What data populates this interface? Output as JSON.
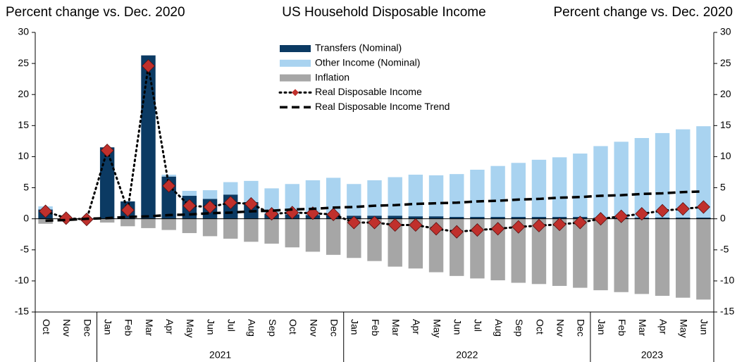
{
  "chart_data": {
    "type": "bar",
    "title": "US Household Disposable Income",
    "y_label": "Percent change vs. Dec. 2020",
    "y2_label": "Percent change vs. Dec. 2020",
    "categories": [
      "Oct",
      "Nov",
      "Dec",
      "Jan",
      "Feb",
      "Mar",
      "Apr",
      "May",
      "Jun",
      "Jul",
      "Aug",
      "Sep",
      "Oct",
      "Nov",
      "Dec",
      "Jan",
      "Feb",
      "Mar",
      "Apr",
      "May",
      "Jun",
      "Jul",
      "Aug",
      "Sep",
      "Oct",
      "Nov",
      "Dec",
      "Jan",
      "Feb",
      "Mar",
      "Apr",
      "May",
      "Jun"
    ],
    "year_groups": [
      {
        "label": null,
        "count": 3
      },
      {
        "label": "2021",
        "count": 12
      },
      {
        "label": "2022",
        "count": 12
      },
      {
        "label": "2023",
        "count": 6
      }
    ],
    "ylim": [
      -15,
      30
    ],
    "yticks": [
      -15,
      -10,
      -5,
      0,
      5,
      10,
      15,
      20,
      25,
      30
    ],
    "y2lim": [
      -15,
      30
    ],
    "y2ticks": [
      -15,
      -10,
      -5,
      0,
      5,
      10,
      15,
      20,
      25,
      30
    ],
    "series": [
      {
        "name": "Transfers (Nominal)",
        "type": "stacked-bar",
        "color": "#0b3a63",
        "values": [
          1.5,
          0,
          0,
          11.5,
          2.8,
          26.3,
          6.8,
          3.7,
          3.2,
          3.9,
          2.7,
          0.8,
          0.7,
          0.6,
          0.6,
          0.5,
          0.5,
          0.5,
          0.4,
          0.4,
          0.3,
          0.3,
          0.3,
          0.3,
          0.3,
          0.3,
          0.3,
          0.2,
          0.2,
          0.2,
          0.2,
          0.2,
          0.2
        ]
      },
      {
        "name": "Other Income (Nominal)",
        "type": "stacked-bar",
        "color": "#a9d3f0",
        "values": [
          0.5,
          0,
          0,
          0,
          0,
          0,
          0.3,
          0.8,
          1.4,
          2.0,
          3.4,
          4.1,
          4.9,
          5.6,
          6.0,
          5.1,
          5.7,
          6.2,
          6.7,
          6.6,
          6.9,
          7.6,
          8.2,
          8.7,
          9.2,
          9.6,
          10.2,
          11.5,
          12.2,
          12.8,
          13.6,
          14.2,
          14.7
        ]
      },
      {
        "name": "Inflation",
        "type": "stacked-bar",
        "color": "#a6a6a6",
        "values": [
          -0.8,
          0,
          0,
          -0.6,
          -1.2,
          -1.5,
          -1.8,
          -2.3,
          -2.8,
          -3.2,
          -3.7,
          -4.0,
          -4.6,
          -5.3,
          -5.8,
          -6.3,
          -6.8,
          -7.7,
          -8.0,
          -8.6,
          -9.2,
          -9.6,
          -9.9,
          -10.3,
          -10.5,
          -10.8,
          -11.1,
          -11.5,
          -11.8,
          -12.1,
          -12.4,
          -12.7,
          -13.0
        ]
      },
      {
        "name": "Real Disposable Income",
        "type": "dotted-line",
        "color": "#000000",
        "marker_color": "#c0302c",
        "values": [
          1.2,
          0.1,
          -0.1,
          11.0,
          1.4,
          24.6,
          5.3,
          2.1,
          1.9,
          2.6,
          2.4,
          0.8,
          1.0,
          0.9,
          0.7,
          -0.6,
          -0.6,
          -1.0,
          -1.0,
          -1.6,
          -2.1,
          -1.8,
          -1.6,
          -1.3,
          -1.1,
          -0.9,
          -0.6,
          0.0,
          0.4,
          0.8,
          1.3,
          1.6,
          1.9
        ]
      },
      {
        "name": "Real Disposable Income Trend",
        "type": "dashed-line",
        "color": "#000000",
        "values": [
          -0.3,
          -0.2,
          0.0,
          0.1,
          0.3,
          0.4,
          0.6,
          0.7,
          0.9,
          1.0,
          1.2,
          1.3,
          1.5,
          1.6,
          1.8,
          1.9,
          2.1,
          2.2,
          2.4,
          2.5,
          2.6,
          2.8,
          2.9,
          3.1,
          3.2,
          3.4,
          3.5,
          3.7,
          3.8,
          4.0,
          4.1,
          4.3,
          4.4
        ]
      }
    ]
  }
}
